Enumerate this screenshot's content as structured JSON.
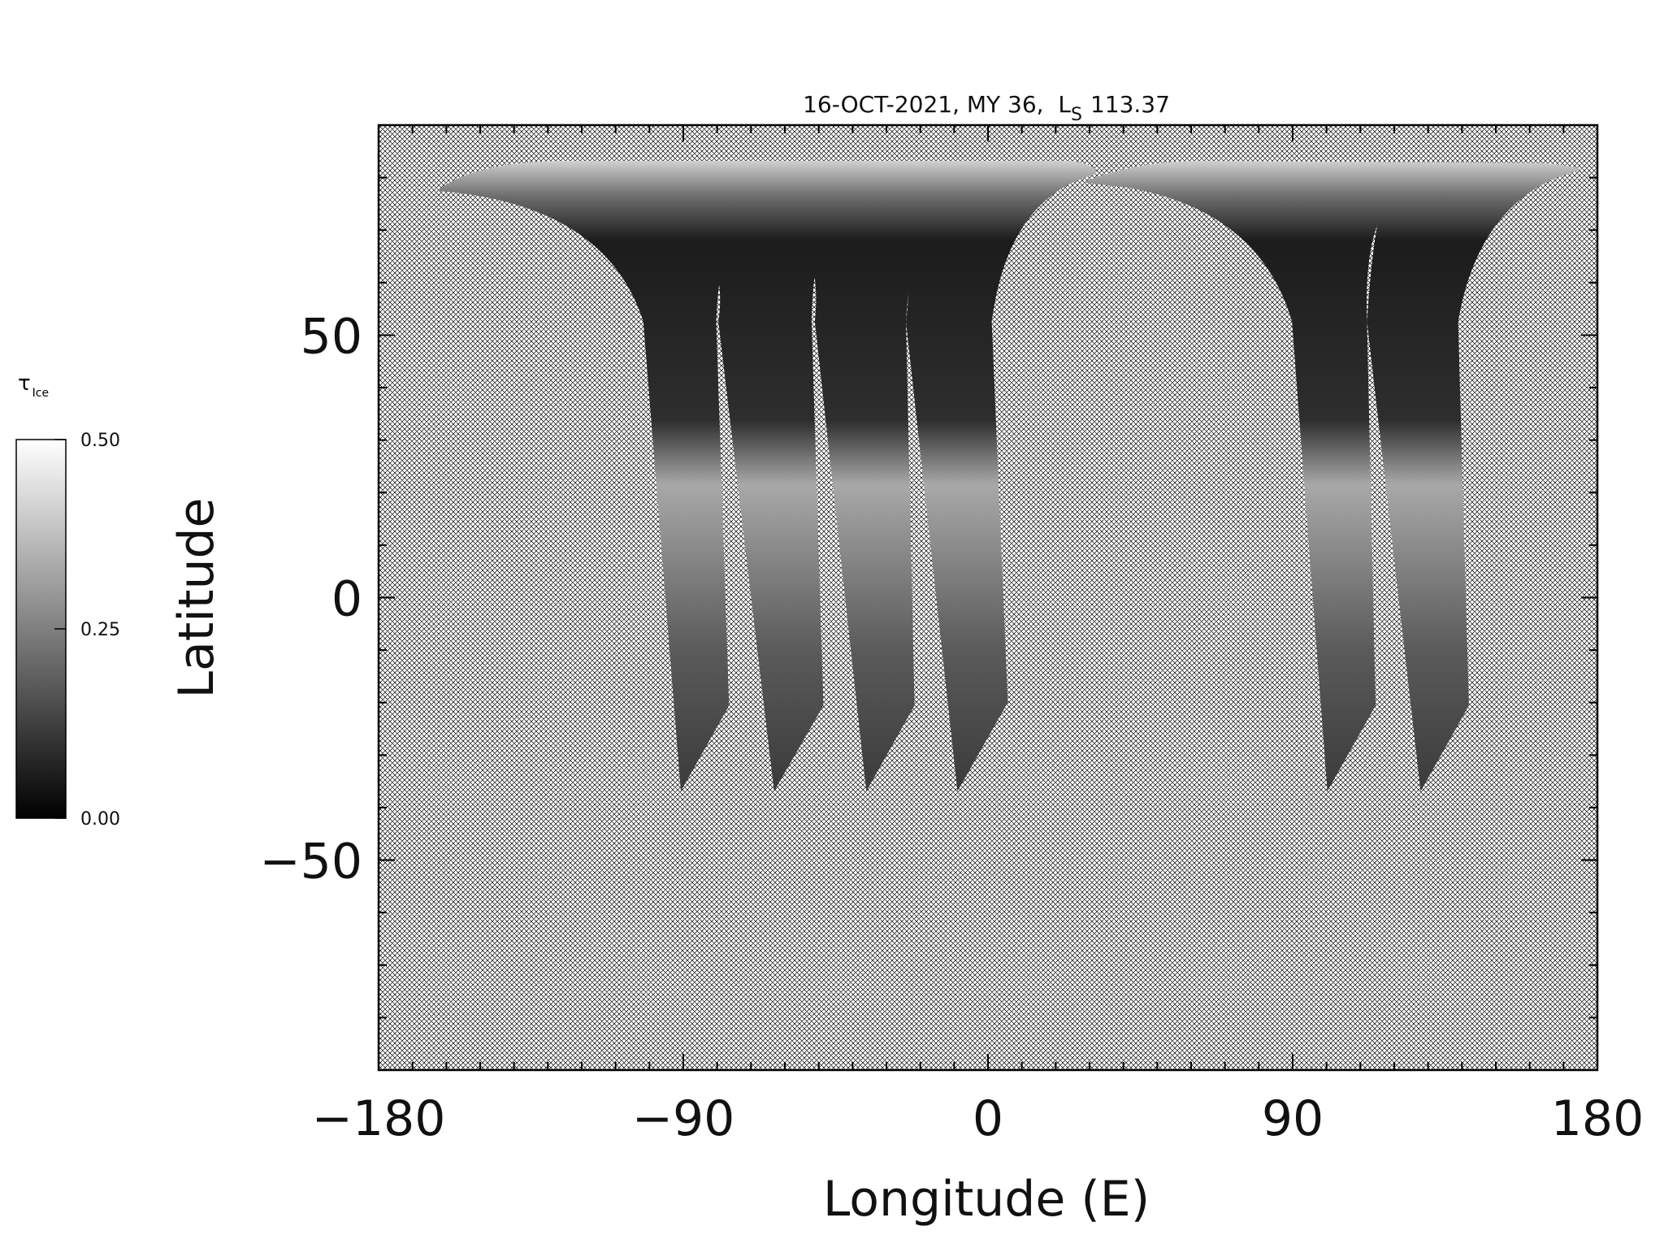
{
  "chart_data": {
    "type": "map",
    "title": "16-OCT-2021, MY 36,  L",
    "title_subscript": "S",
    "title_suffix": "113.37",
    "x_label": "Longitude (E)",
    "y_label": "Latitude",
    "xlim": [
      -180,
      180
    ],
    "xticks": [
      {
        "value": -180,
        "label": "−180"
      },
      {
        "value": -90,
        "label": "−90"
      },
      0,
      90,
      180
    ],
    "x_minor_step": 10,
    "ylim": [
      -90,
      90
    ],
    "yticks": [
      {
        "value": -50,
        "label": "−50"
      },
      0,
      50
    ],
    "y_minor_step": 10,
    "colorbar": {
      "label": "τ",
      "label_subscript": "Ice",
      "lim": [
        0,
        0.5
      ],
      "ticks": [
        {
          "value": 0,
          "label": "0.00"
        },
        {
          "value": 0.25,
          "label": "0.25"
        },
        {
          "value": 0.5,
          "label": "0.50"
        }
      ],
      "colors": [
        "#000000",
        "#ffffff"
      ]
    }
  }
}
